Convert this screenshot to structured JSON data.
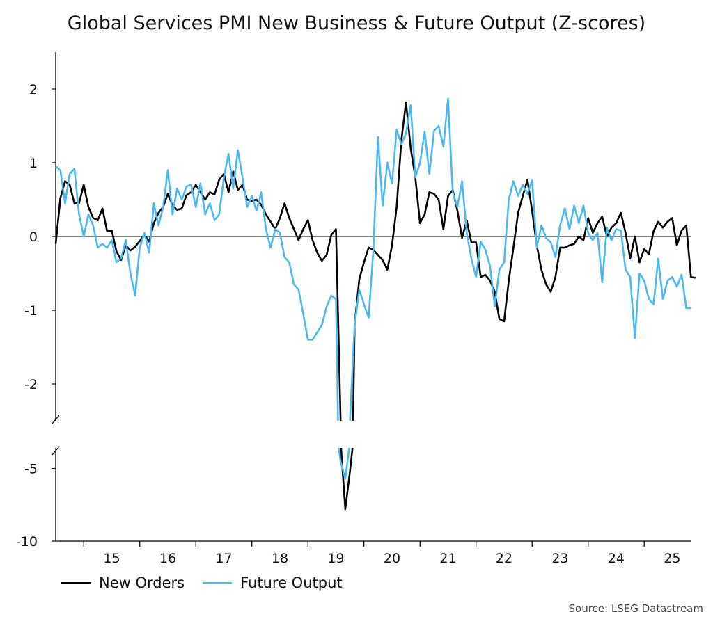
{
  "chart_data": {
    "type": "line",
    "title": "Global Services PMI New Business & Future Output (Z-scores)",
    "xlabel": "",
    "ylabel": "",
    "x_tick_labels": [
      "15",
      "16",
      "17",
      "18",
      "19",
      "20",
      "21",
      "22",
      "23",
      "24",
      "25"
    ],
    "xlim_years": [
      2014.5,
      2025.83
    ],
    "axis_break": true,
    "upper_panel": {
      "ylim": [
        -2.5,
        2.5
      ],
      "ticks": [
        "2",
        "1",
        "0",
        "-1",
        "-2"
      ]
    },
    "lower_panel": {
      "ylim": [
        -10,
        -3
      ],
      "ticks": [
        "-5",
        "-10"
      ]
    },
    "zero_line": true,
    "grid": false,
    "legend_placement": "bottom-left",
    "source": "Source: LSEG Datastream",
    "series": [
      {
        "name": "New Orders",
        "color": "#000000",
        "start": "2014-07",
        "values": [
          -0.1,
          0.52,
          0.75,
          0.7,
          0.45,
          0.45,
          0.7,
          0.4,
          0.25,
          0.22,
          0.38,
          0.07,
          0.08,
          -0.2,
          -0.32,
          -0.12,
          -0.19,
          -0.14,
          -0.06,
          0.02,
          -0.07,
          0.18,
          0.32,
          0.4,
          0.58,
          0.42,
          0.36,
          0.38,
          0.56,
          0.6,
          0.7,
          0.6,
          0.5,
          0.6,
          0.57,
          0.77,
          0.85,
          0.6,
          0.88,
          0.63,
          0.7,
          0.5,
          0.48,
          0.5,
          0.43,
          0.3,
          0.2,
          0.1,
          0.25,
          0.45,
          0.25,
          0.1,
          -0.05,
          0.1,
          0.22,
          -0.05,
          -0.22,
          -0.33,
          -0.25,
          0.02,
          0.1,
          -2.5,
          -7.8,
          -5.2,
          -1.2,
          -0.58,
          -0.35,
          -0.15,
          -0.18,
          -0.25,
          -0.32,
          -0.45,
          -0.12,
          0.4,
          1.3,
          1.82,
          1.2,
          0.8,
          0.18,
          0.3,
          0.6,
          0.58,
          0.5,
          0.1,
          0.55,
          0.63,
          0.35,
          -0.02,
          0.22,
          -0.08,
          -0.08,
          -0.55,
          -0.52,
          -0.6,
          -0.75,
          -1.12,
          -1.15,
          -0.6,
          -0.15,
          0.32,
          0.55,
          0.77,
          0.35,
          -0.12,
          -0.45,
          -0.65,
          -0.75,
          -0.55,
          -0.15,
          -0.15,
          -0.12,
          -0.1,
          0.0,
          -0.05,
          0.25,
          0.05,
          0.18,
          0.27,
          0.0,
          0.12,
          0.18,
          0.32,
          0.05,
          -0.3,
          0.0,
          -0.35,
          -0.17,
          -0.24,
          0.07,
          0.2,
          0.12,
          0.2,
          0.25,
          -0.12,
          0.08,
          0.15,
          -0.55,
          -0.56
        ]
      },
      {
        "name": "Future Output",
        "color": "#4cb8f2",
        "start": "2014-07",
        "values": [
          0.95,
          0.9,
          0.45,
          0.85,
          0.92,
          0.3,
          0.0,
          0.3,
          0.15,
          -0.15,
          -0.1,
          -0.15,
          -0.05,
          -0.35,
          -0.3,
          -0.05,
          -0.5,
          -0.8,
          -0.15,
          0.05,
          -0.22,
          0.45,
          0.15,
          0.4,
          0.9,
          0.3,
          0.65,
          0.5,
          0.68,
          0.7,
          0.4,
          0.72,
          0.3,
          0.45,
          0.22,
          0.3,
          0.8,
          1.12,
          0.65,
          1.17,
          0.8,
          0.4,
          0.55,
          0.35,
          0.6,
          0.1,
          -0.15,
          0.1,
          0.05,
          -0.28,
          -0.35,
          -0.65,
          -0.72,
          -1.05,
          -1.4,
          -1.4,
          -1.3,
          -1.2,
          -0.95,
          -0.8,
          -0.85,
          -4.5,
          -5.7,
          -2.5,
          -1.2,
          -0.72,
          -0.92,
          -1.1,
          -0.2,
          1.35,
          0.42,
          1.0,
          0.72,
          1.45,
          1.25,
          1.4,
          1.78,
          0.8,
          1.0,
          1.42,
          0.85,
          1.43,
          1.5,
          1.22,
          1.87,
          0.6,
          0.4,
          0.75,
          0.05,
          -0.3,
          -0.55,
          -0.07,
          -0.18,
          -0.4,
          -0.95,
          -0.45,
          -0.35,
          0.5,
          0.75,
          0.55,
          0.7,
          0.58,
          0.76,
          -0.15,
          0.15,
          -0.02,
          -0.08,
          -0.28,
          0.15,
          0.38,
          0.1,
          0.42,
          0.18,
          0.42,
          0.05,
          -0.05,
          0.05,
          -0.62,
          0.12,
          -0.05,
          0.1,
          0.08,
          -0.45,
          -0.55,
          -1.38,
          -0.5,
          -0.6,
          -0.85,
          -0.92,
          -0.3,
          -0.85,
          -0.6,
          -0.55,
          -0.68,
          -0.52,
          -0.97,
          -0.97
        ]
      }
    ]
  }
}
